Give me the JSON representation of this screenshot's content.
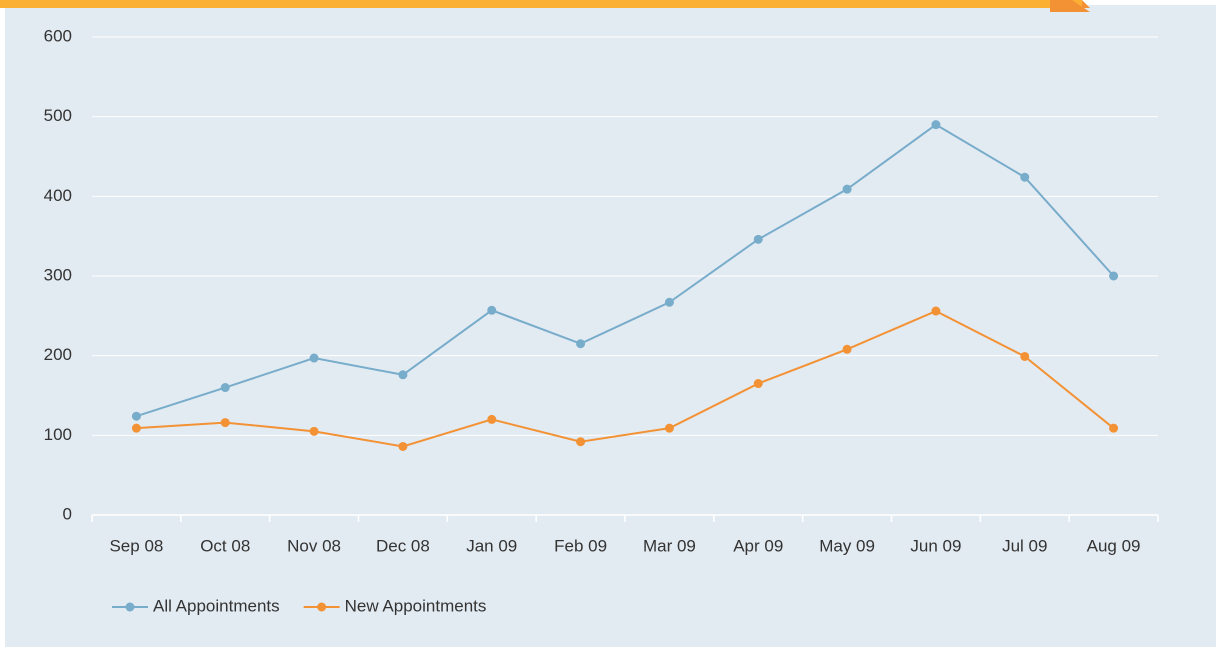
{
  "chart_data": {
    "type": "line",
    "categories": [
      "Sep 08",
      "Oct 08",
      "Nov 08",
      "Dec 08",
      "Jan 09",
      "Feb 09",
      "Mar 09",
      "Apr 09",
      "May 09",
      "Jun 09",
      "Jul 09",
      "Aug 09"
    ],
    "series": [
      {
        "name": "All Appointments",
        "color": "#78accb",
        "values": [
          124,
          160,
          197,
          176,
          257,
          215,
          267,
          346,
          409,
          490,
          424,
          300
        ]
      },
      {
        "name": "New Appointments",
        "color": "#f39235",
        "values": [
          109,
          116,
          105,
          86,
          120,
          92,
          109,
          165,
          208,
          256,
          199,
          109
        ]
      }
    ],
    "ylim": [
      0,
      600
    ],
    "yticks": [
      0,
      100,
      200,
      300,
      400,
      500,
      600
    ],
    "grid": true,
    "legend": "bottom-left"
  }
}
